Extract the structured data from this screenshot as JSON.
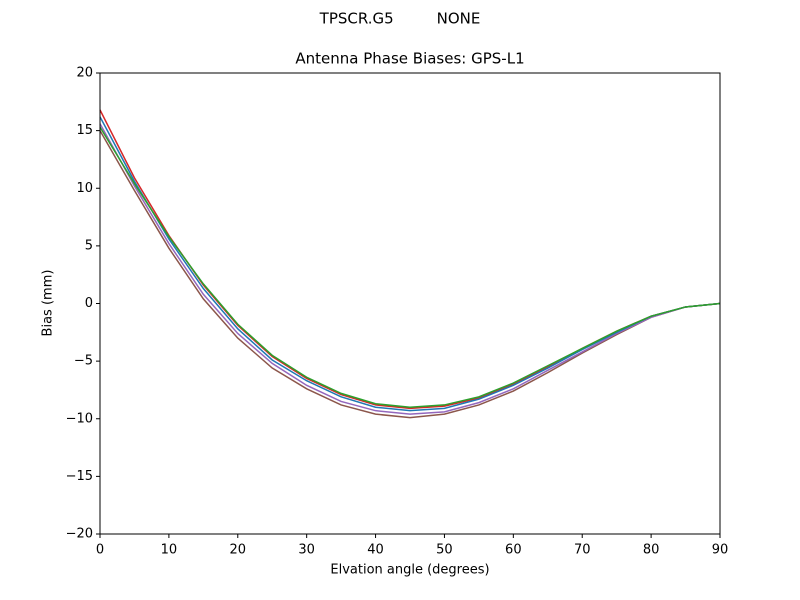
{
  "chart_data": {
    "type": "line",
    "suptitle": "TPSCR.G5         NONE",
    "title": "Antenna Phase Biases: GPS-L1",
    "xlabel": "Elvation angle (degrees)",
    "ylabel": "Bias (mm)",
    "x": [
      0,
      5,
      10,
      15,
      20,
      25,
      30,
      35,
      40,
      45,
      50,
      55,
      60,
      65,
      70,
      75,
      80,
      85,
      90
    ],
    "series": [
      {
        "color": "#8c564b",
        "values": [
          15.0,
          9.8,
          4.8,
          0.4,
          -3.0,
          -5.6,
          -7.4,
          -8.8,
          -9.6,
          -9.9,
          -9.6,
          -8.8,
          -7.6,
          -6.0,
          -4.3,
          -2.7,
          -1.2,
          -0.3,
          0
        ]
      },
      {
        "color": "#9467bd",
        "values": [
          15.6,
          10.2,
          5.2,
          0.8,
          -2.6,
          -5.2,
          -7.1,
          -8.5,
          -9.3,
          -9.6,
          -9.4,
          -8.6,
          -7.4,
          -5.8,
          -4.2,
          -2.6,
          -1.2,
          -0.3,
          0
        ]
      },
      {
        "color": "#d62728",
        "values": [
          16.8,
          10.9,
          5.9,
          1.6,
          -1.9,
          -4.6,
          -6.5,
          -7.9,
          -8.8,
          -9.1,
          -8.9,
          -8.2,
          -7.0,
          -5.5,
          -3.9,
          -2.4,
          -1.1,
          -0.3,
          0
        ]
      },
      {
        "color": "#1f77b4",
        "values": [
          16.2,
          10.6,
          5.6,
          1.3,
          -2.2,
          -4.9,
          -6.7,
          -8.1,
          -9.0,
          -9.3,
          -9.1,
          -8.3,
          -7.1,
          -5.6,
          -4.0,
          -2.5,
          -1.1,
          -0.3,
          0
        ]
      },
      {
        "color": "#2ca02c",
        "values": [
          15.3,
          10.4,
          5.8,
          1.7,
          -1.8,
          -4.5,
          -6.4,
          -7.8,
          -8.7,
          -9.0,
          -8.8,
          -8.1,
          -6.9,
          -5.4,
          -3.9,
          -2.4,
          -1.1,
          -0.3,
          0
        ]
      }
    ],
    "xlim": [
      0,
      90
    ],
    "xticks": [
      0,
      10,
      20,
      30,
      40,
      50,
      60,
      70,
      80,
      90
    ],
    "ylim": [
      -20,
      20
    ],
    "yticks": [
      {
        "value": -20,
        "label": "−20"
      },
      {
        "value": -15,
        "label": "−15"
      },
      {
        "value": -10,
        "label": "−10"
      },
      {
        "value": -5,
        "label": "−5"
      },
      0,
      5,
      10,
      15,
      20
    ],
    "grid": false
  }
}
